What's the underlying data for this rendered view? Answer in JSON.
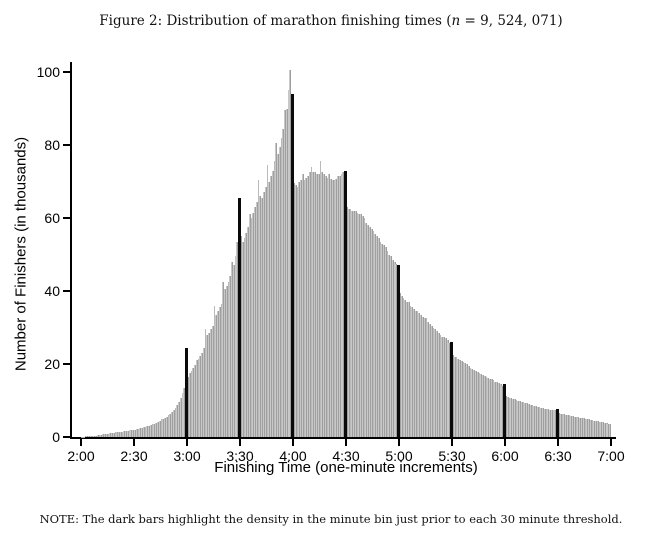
{
  "title": {
    "prefix": "Figure 2: Distribution of marathon finishing times (",
    "var": "n",
    "suffix": " = 9, 524, 071)"
  },
  "note": "NOTE: The dark bars highlight the density in the minute bin just prior to each 30 minute threshold.",
  "colors": {
    "bar": "#b1b1b1",
    "highlight": "#0a0a0a",
    "axis": "#000000",
    "background": "#ffffff"
  },
  "chart_data": {
    "type": "bar",
    "subtype": "histogram",
    "title": "Figure 2: Distribution of marathon finishing times (n = 9,524,071)",
    "xlabel": "Finishing Time (one-minute increments)",
    "ylabel": "Number of Finishers (in thousands)",
    "x_start": "2:00",
    "x_end": "7:00",
    "bin_width_minutes": 1,
    "x_ticks": [
      "2:00",
      "2:30",
      "3:00",
      "3:30",
      "4:00",
      "4:30",
      "5:00",
      "5:30",
      "6:00",
      "6:30",
      "7:00"
    ],
    "y_ticks": [
      0,
      20,
      40,
      60,
      80,
      100
    ],
    "ylim": [
      0,
      103
    ],
    "grid": false,
    "legend": "none",
    "highlight_rule": "minute bin just prior to each 30 minute threshold",
    "highlight_indices": [
      59,
      89,
      119,
      149,
      179,
      209,
      239,
      269
    ],
    "highlight_values": {
      "2:59": 24.5,
      "3:29": 65.5,
      "3:59": 94,
      "4:29": 73,
      "4:59": 47,
      "5:29": 26,
      "5:59": 14.5,
      "6:29": 7.8
    },
    "peak": {
      "time": "3:58",
      "value": 100.5
    },
    "values": [
      0.1,
      0.12,
      0.15,
      0.18,
      0.2,
      0.25,
      0.3,
      0.35,
      0.4,
      0.5,
      0.55,
      0.6,
      0.7,
      0.75,
      0.85,
      0.95,
      1.0,
      1.1,
      1.15,
      1.25,
      1.3,
      1.4,
      1.45,
      1.5,
      1.6,
      1.65,
      1.7,
      1.8,
      1.85,
      1.95,
      2.0,
      2.1,
      2.2,
      2.35,
      2.5,
      2.7,
      2.8,
      2.95,
      3.1,
      3.3,
      3.5,
      3.7,
      3.9,
      4.1,
      4.4,
      4.8,
      5.0,
      5.3,
      5.6,
      6.0,
      6.4,
      6.9,
      7.4,
      8.0,
      8.7,
      9.6,
      10.8,
      12.0,
      13.5,
      24.5,
      16.5,
      17.5,
      18.0,
      19.0,
      19.7,
      21.0,
      21.5,
      22.3,
      23.0,
      24.5,
      29.5,
      28.0,
      28.5,
      29.5,
      30.5,
      36.0,
      33.5,
      34.5,
      35.5,
      36.5,
      42.5,
      40.5,
      41.5,
      42.5,
      44.0,
      48.0,
      47.0,
      49.5,
      53.5,
      65.5,
      55.0,
      53.5,
      54.5,
      56.0,
      57.5,
      61.0,
      60.0,
      61.5,
      63.0,
      64.5,
      70.5,
      66.0,
      65.5,
      67.0,
      68.5,
      74.5,
      70.0,
      71.5,
      73.0,
      75.5,
      80.5,
      77.5,
      79.5,
      82.0,
      84.5,
      89.5,
      90.0,
      95.0,
      100.5,
      94.0,
      69.5,
      69.0,
      68.5,
      70.0,
      70.5,
      72.0,
      70.5,
      71.0,
      71.5,
      72.5,
      74.0,
      72.5,
      72.5,
      72.0,
      72.0,
      75.5,
      72.5,
      72.0,
      71.5,
      71.0,
      72.0,
      70.8,
      70.5,
      70.5,
      70.8,
      71.5,
      71.5,
      72.0,
      72.5,
      73.0,
      63.0,
      62.5,
      62.5,
      62.0,
      62.0,
      62.0,
      61.5,
      61.0,
      61.0,
      60.5,
      60.0,
      58.5,
      58.0,
      57.5,
      57.0,
      56.5,
      55.5,
      55.0,
      54.5,
      53.5,
      53.0,
      52.5,
      52.0,
      51.0,
      50.0,
      49.5,
      48.5,
      48.0,
      47.5,
      47.0,
      39.5,
      38.5,
      38.0,
      37.5,
      37.0,
      37.0,
      36.0,
      35.5,
      35.0,
      34.5,
      34.5,
      34.0,
      33.5,
      33.0,
      32.5,
      32.5,
      31.5,
      31.0,
      30.5,
      30.0,
      29.5,
      29.0,
      28.5,
      28.0,
      27.5,
      27.5,
      27.0,
      26.5,
      25.8,
      26.0,
      22.5,
      22.0,
      21.8,
      21.5,
      21.0,
      20.8,
      20.5,
      20.3,
      20.0,
      19.5,
      19.0,
      18.7,
      18.4,
      18.0,
      17.8,
      17.5,
      17.2,
      17.0,
      16.8,
      16.5,
      16.3,
      16.0,
      15.8,
      15.5,
      15.2,
      15.0,
      14.8,
      14.5,
      14.0,
      14.5,
      11.2,
      11.0,
      10.8,
      10.7,
      10.5,
      10.4,
      10.2,
      10.0,
      9.8,
      9.7,
      9.5,
      9.3,
      9.2,
      9.0,
      8.9,
      8.8,
      8.6,
      8.4,
      8.3,
      8.1,
      8.0,
      7.9,
      7.8,
      7.7,
      7.6,
      7.5,
      7.5,
      7.4,
      7.3,
      7.8,
      6.5,
      6.4,
      6.3,
      6.2,
      6.1,
      6.0,
      5.9,
      5.8,
      5.7,
      5.6,
      5.5,
      5.4,
      5.3,
      5.2,
      5.1,
      5.0,
      4.9,
      4.8,
      4.7,
      4.6,
      4.5,
      4.4,
      4.3,
      4.2,
      4.1,
      4.0,
      3.9,
      3.8,
      3.7,
      3.6
    ]
  }
}
